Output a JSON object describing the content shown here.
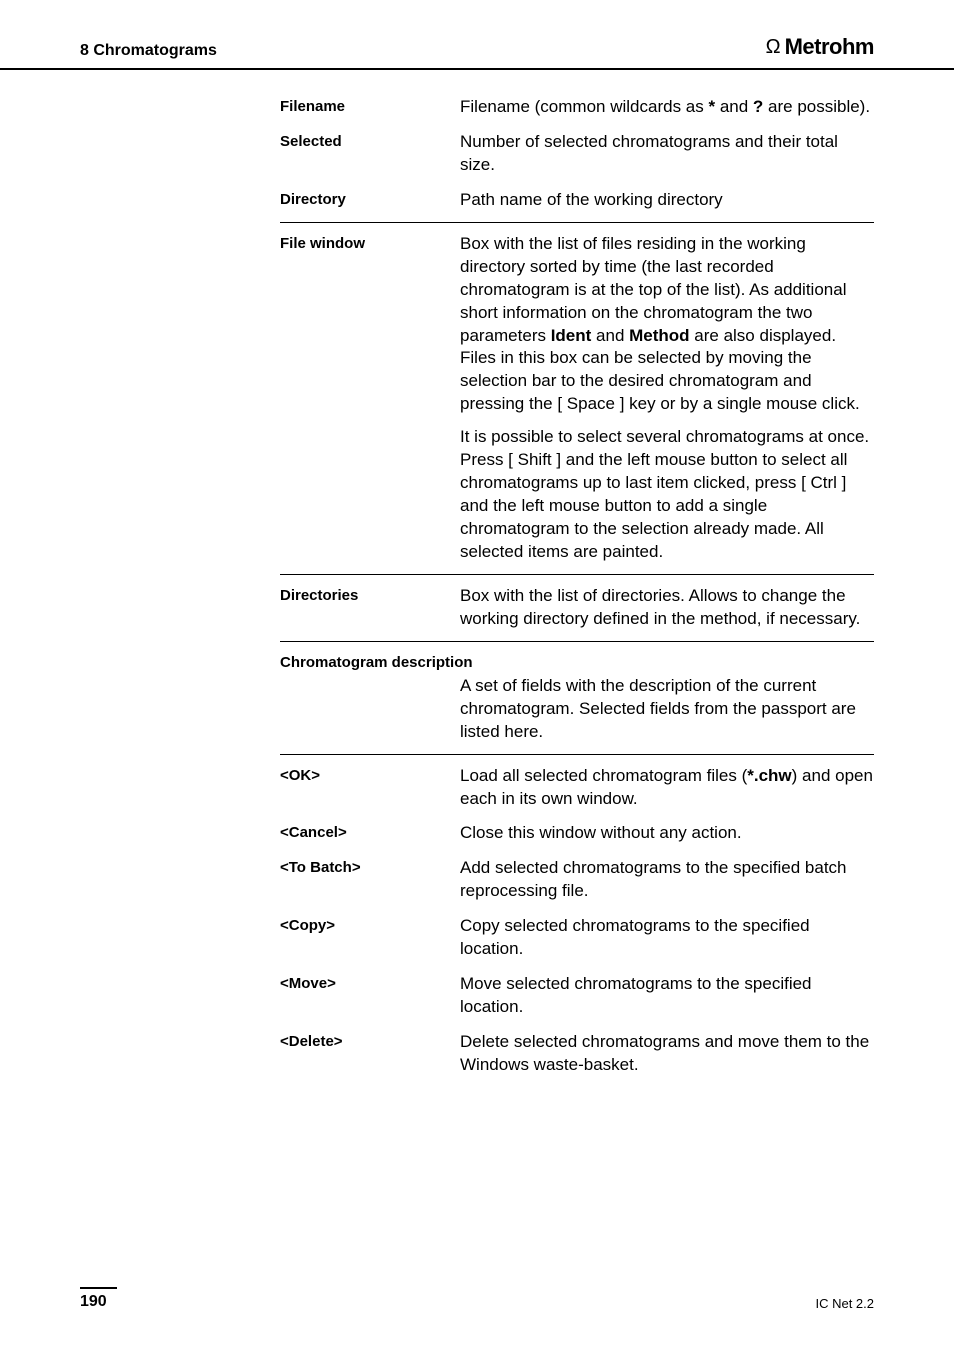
{
  "header": {
    "section": "8  Chromatograms",
    "brand": "Metrohm"
  },
  "rows": {
    "filename": {
      "label": "Filename",
      "desc_a": "Filename (common wildcards as ",
      "b1": "*",
      "desc_b": " and ",
      "b2": "?",
      "desc_c": " are possible)."
    },
    "selected": {
      "label": "Selected",
      "desc": "Number of selected chromatograms and their total size."
    },
    "directory": {
      "label": "Directory",
      "desc": "Path name of the working directory"
    },
    "filewindow": {
      "label": "File window",
      "p1a": "Box with the list of files residing in the working directory sorted by time (the last recorded chromatogram is at the top of the list). As additional short information on the chromatogram the two parameters ",
      "p1b1": "Ident",
      "p1mid": " and ",
      "p1b2": "Method",
      "p1b": " are also displayed. Files in this box can be selected by moving the selection bar to the desired chromatogram and pressing the [ Space ] key or by a single mouse click.",
      "p2": "It is possible to select several chromatograms at once. Press [ Shift ] and the left mouse button to select all chromatograms up to last item clicked, press [ Ctrl ] and the left mouse button to add a single chromatogram to the selection already made. All selected items are painted."
    },
    "directories": {
      "label": "Directories",
      "desc": "Box with the list of directories. Allows to change the working directory defined in the method, if necessary."
    },
    "chromdesc": {
      "label": "Chromatogram description",
      "desc": "A set of fields with the description of the current chromatogram. Selected fields from the passport are listed here."
    },
    "ok": {
      "label": "<OK>",
      "desc_a": "Load all selected chromatogram files (",
      "b1": "*.chw",
      "desc_b": ") and open each in its own window."
    },
    "cancel": {
      "label": "<Cancel>",
      "desc": "Close this window without any action."
    },
    "tobatch": {
      "label": "<To Batch>",
      "desc": "Add selected chromatograms to the specified batch reprocessing file."
    },
    "copy": {
      "label": "<Copy>",
      "desc": "Copy selected chromatograms to the specified location."
    },
    "move": {
      "label": "<Move>",
      "desc": "Move selected chromatograms to the specified location."
    },
    "delete": {
      "label": "<Delete>",
      "desc": "Delete selected chromatograms and move them to the Windows waste-basket."
    }
  },
  "footer": {
    "page": "190",
    "product": "IC Net 2.2"
  }
}
